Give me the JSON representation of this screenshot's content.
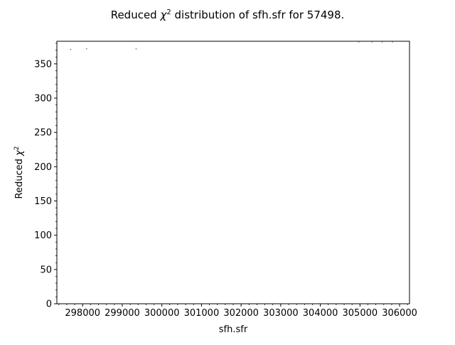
{
  "chart_data": {
    "type": "scatter",
    "title_prefix": "Reduced ",
    "title_symbol": "χ",
    "title_sup": "2",
    "title_suffix": " distribution of sfh.sfr for 57498.",
    "xlabel": "sfh.sfr",
    "ylabel_prefix": "Reduced ",
    "ylabel_symbol": "χ",
    "ylabel_sup": "2",
    "xlim": [
      297350,
      306250
    ],
    "ylim": [
      0,
      383
    ],
    "x_ticks": [
      298000,
      299000,
      300000,
      301000,
      302000,
      303000,
      304000,
      305000,
      306000
    ],
    "y_ticks": [
      0,
      50,
      100,
      150,
      200,
      250,
      300,
      350
    ],
    "x_tick_labels": [
      "298000",
      "299000",
      "300000",
      "301000",
      "302000",
      "303000",
      "304000",
      "305000",
      "306000"
    ],
    "y_tick_labels": [
      "0",
      "50",
      "100",
      "150",
      "200",
      "250",
      "300",
      "350"
    ],
    "grid": false,
    "marker_color": "#808080",
    "points": [
      {
        "x": 297700,
        "y": 371
      },
      {
        "x": 298100,
        "y": 372
      },
      {
        "x": 299350,
        "y": 372
      },
      {
        "x": 304970,
        "y": 382
      },
      {
        "x": 305300,
        "y": 382
      },
      {
        "x": 305560,
        "y": 382
      },
      {
        "x": 305820,
        "y": 382
      }
    ]
  }
}
